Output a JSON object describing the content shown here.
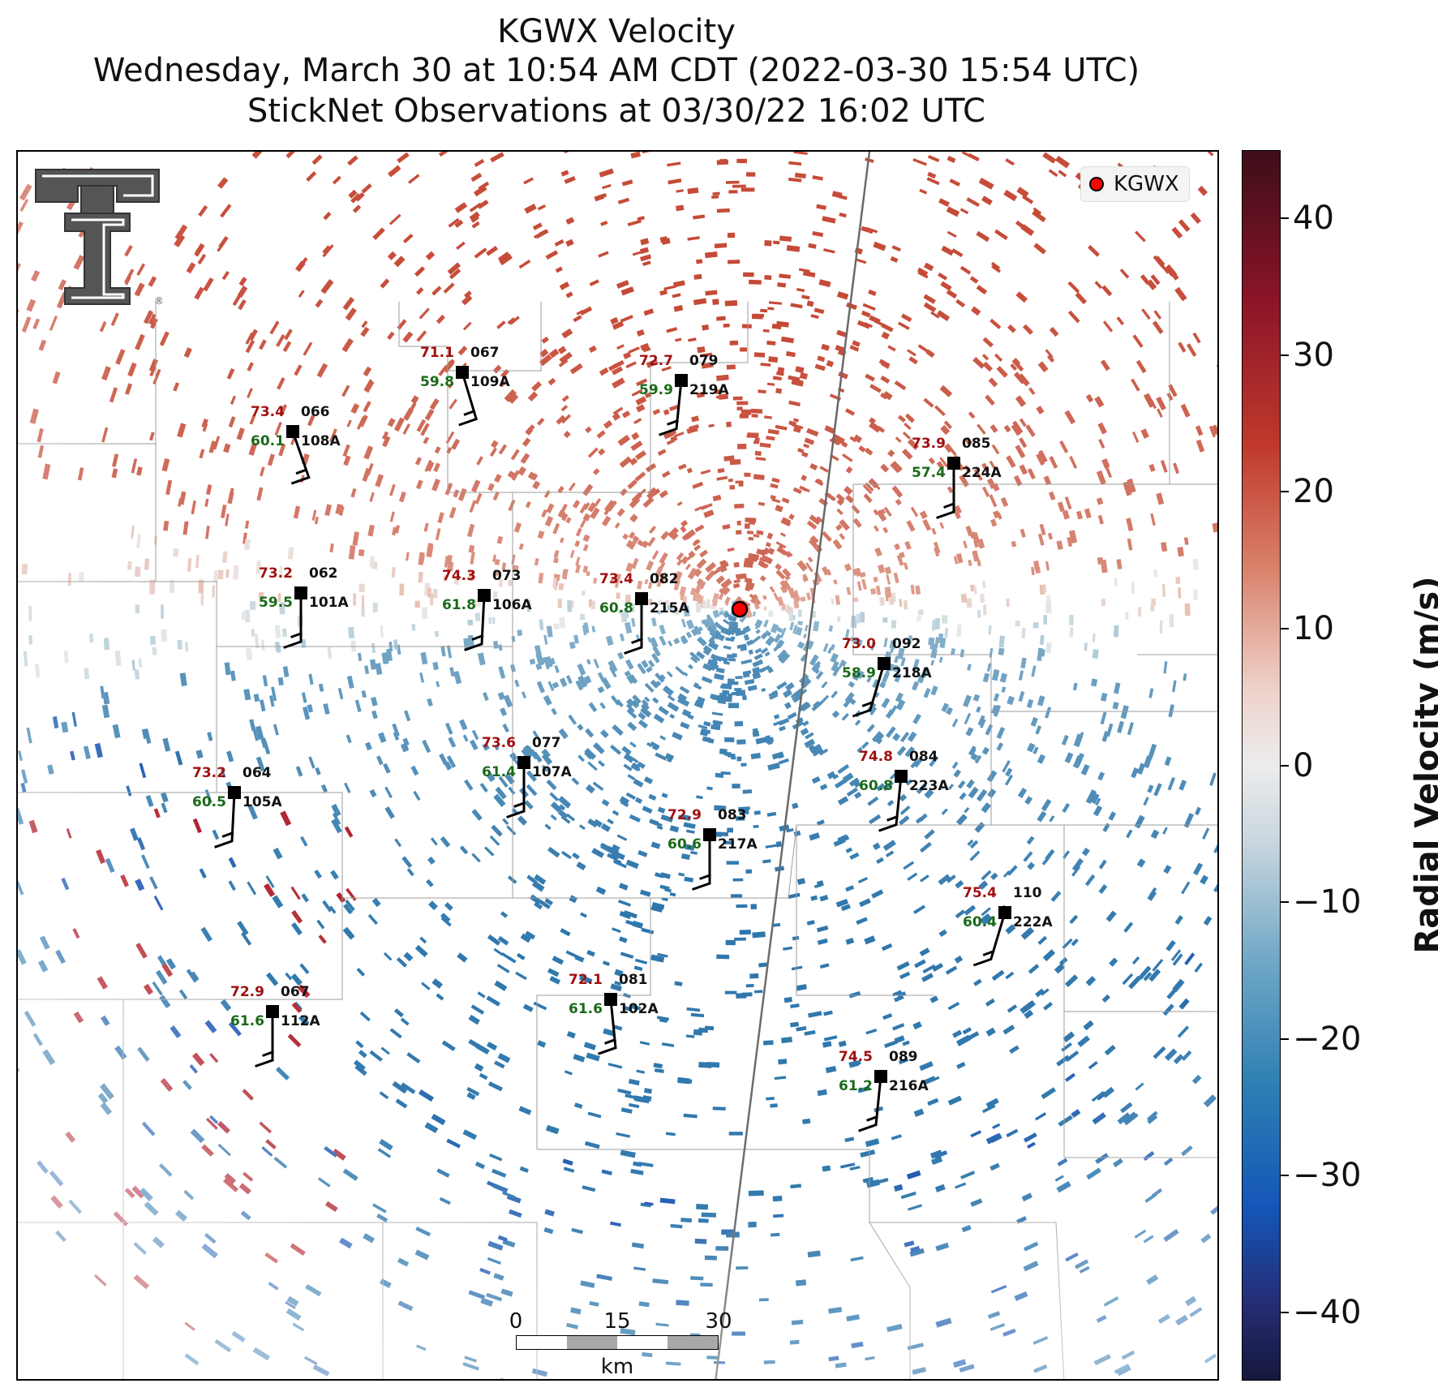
{
  "title": {
    "line1": "KGWX Velocity",
    "line2": "Wednesday, March 30 at 10:54 AM CDT (2022-03-30 15:54 UTC)",
    "line3": "StickNet Observations at 03/30/22 16:02 UTC"
  },
  "legend": {
    "label": "KGWX",
    "marker_color": "#ff0000"
  },
  "colorbar": {
    "label": "Radial Velocity (m/s)",
    "ticks": [
      "40",
      "30",
      "20",
      "10",
      "0",
      "−10",
      "−20",
      "−30",
      "−40"
    ],
    "range": [
      -45,
      45
    ]
  },
  "scale_bar": {
    "labels": [
      "0",
      "15",
      "30"
    ],
    "unit": "km"
  },
  "logo": {
    "name": "Texas Tech Double T",
    "mark": "®"
  },
  "stations": [
    {
      "id": "109A",
      "temp": "71.1",
      "dew": "59.8",
      "value": "067"
    },
    {
      "id": "219A",
      "temp": "72.7",
      "dew": "59.9",
      "value": "079"
    },
    {
      "id": "108A",
      "temp": "73.4",
      "dew": "60.1",
      "value": "066"
    },
    {
      "id": "224A",
      "temp": "73.9",
      "dew": "57.4",
      "value": "085"
    },
    {
      "id": "101A",
      "temp": "73.2",
      "dew": "59.5",
      "value": "062"
    },
    {
      "id": "106A",
      "temp": "74.3",
      "dew": "61.8",
      "value": "073"
    },
    {
      "id": "215A",
      "temp": "73.4",
      "dew": "60.8",
      "value": "082"
    },
    {
      "id": "218A",
      "temp": "73.0",
      "dew": "58.9",
      "value": "092"
    },
    {
      "id": "107A",
      "temp": "73.6",
      "dew": "61.4",
      "value": "077"
    },
    {
      "id": "105A",
      "temp": "73.2",
      "dew": "60.5",
      "value": "064"
    },
    {
      "id": "223A",
      "temp": "74.8",
      "dew": "60.8",
      "value": "084"
    },
    {
      "id": "217A",
      "temp": "72.9",
      "dew": "60.6",
      "value": "083"
    },
    {
      "id": "222A",
      "temp": "75.4",
      "dew": "60.4",
      "value": "110"
    },
    {
      "id": "102A",
      "temp": "72.1",
      "dew": "61.6",
      "value": "081"
    },
    {
      "id": "112A",
      "temp": "72.9",
      "dew": "61.6",
      "value": "067"
    },
    {
      "id": "216A",
      "temp": "74.5",
      "dew": "61.2",
      "value": "089"
    }
  ],
  "colors": {
    "temp_text": "#a01010",
    "dew_text": "#1a6a1a",
    "inbound": "#2e7fb3",
    "outbound": "#c0392b"
  }
}
